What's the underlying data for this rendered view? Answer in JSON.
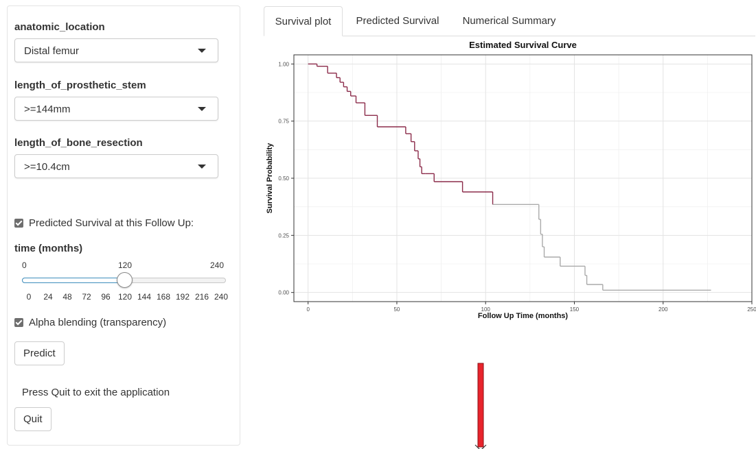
{
  "sidebar": {
    "anatomic_location": {
      "label": "anatomic_location",
      "value": "Distal femur"
    },
    "length_of_prosthetic_stem": {
      "label": "length_of_prosthetic_stem",
      "value": ">=144mm"
    },
    "length_of_bone_resection": {
      "label": "length_of_bone_resection",
      "value": ">=10.4cm"
    },
    "predicted_checkbox_label": "Predicted Survival at this Follow Up:",
    "slider": {
      "label": "time (months)",
      "min": "0",
      "max": "240",
      "value": "120",
      "ticks": [
        "0",
        "24",
        "48",
        "72",
        "96",
        "120",
        "144",
        "168",
        "192",
        "216",
        "240"
      ]
    },
    "alpha_checkbox_label": "Alpha blending (transparency)",
    "predict_button": "Predict",
    "quit_text": "Press Quit to exit the application",
    "quit_button": "Quit"
  },
  "tabs": [
    "Survival plot",
    "Predicted Survival",
    "Numerical Summary"
  ],
  "colors": {
    "curve_dark": "#8b2b4a",
    "curve_light": "#aaaaaa",
    "slider_fill": "#3c8dbc",
    "arrow": "#e8242c"
  },
  "chart_data": {
    "type": "line",
    "title": "Estimated Survival Curve",
    "xlabel": "Follow Up Time (months)",
    "ylabel": "Survival Probability",
    "xlim": [
      -8,
      250
    ],
    "ylim": [
      -0.04,
      1.04
    ],
    "xticks": [
      0,
      50,
      100,
      150,
      200,
      250
    ],
    "xtick_labels": [
      "0",
      "50",
      "100",
      "150",
      "200",
      "250"
    ],
    "yticks": [
      0,
      0.25,
      0.5,
      0.75,
      1.0
    ],
    "ytick_labels": [
      "0.00",
      "0.25",
      "0.50",
      "0.75",
      "1.00"
    ],
    "grid": true,
    "highlight_until": 120,
    "series": [
      {
        "step": true,
        "x": [
          0,
          5,
          11,
          16,
          18,
          20,
          22,
          24,
          27,
          32,
          39,
          55,
          58,
          60,
          62,
          63,
          64,
          66,
          71,
          87,
          104,
          130,
          131,
          132,
          133,
          142,
          156,
          157,
          166,
          227
        ],
        "y": [
          1.0,
          0.99,
          0.96,
          0.94,
          0.92,
          0.9,
          0.88,
          0.86,
          0.83,
          0.775,
          0.725,
          0.695,
          0.66,
          0.62,
          0.585,
          0.55,
          0.52,
          0.52,
          0.485,
          0.44,
          0.385,
          0.32,
          0.255,
          0.2,
          0.155,
          0.115,
          0.075,
          0.035,
          0.01,
          0.01
        ]
      }
    ]
  }
}
